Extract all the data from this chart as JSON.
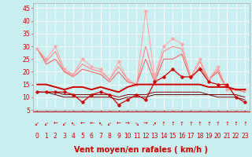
{
  "bg_color": "#c8eef0",
  "grid_color": "#ffffff",
  "xlabel": "Vent moyen/en rafales ( km/h )",
  "xlabel_color": "#cc0000",
  "xlim": [
    -0.5,
    23.5
  ],
  "ylim": [
    5,
    47
  ],
  "yticks": [
    5,
    10,
    15,
    20,
    25,
    30,
    35,
    40,
    45
  ],
  "xticks": [
    0,
    1,
    2,
    3,
    4,
    5,
    6,
    7,
    8,
    9,
    10,
    11,
    12,
    13,
    14,
    15,
    16,
    17,
    18,
    19,
    20,
    21,
    22,
    23
  ],
  "lines": [
    {
      "x": [
        0,
        1,
        2,
        3,
        4,
        5,
        6,
        7,
        8,
        9,
        10,
        11,
        12,
        13,
        14,
        15,
        16,
        17,
        18,
        19,
        20,
        21,
        22,
        23
      ],
      "y": [
        29,
        25,
        30,
        21,
        19,
        25,
        22,
        21,
        17,
        24,
        17,
        15,
        44,
        18,
        30,
        33,
        31,
        18,
        25,
        17,
        22,
        13,
        13,
        13
      ],
      "color": "#ffaaaa",
      "lw": 0.8,
      "marker": "D",
      "ms": 1.8,
      "zorder": 3
    },
    {
      "x": [
        0,
        1,
        2,
        3,
        4,
        5,
        6,
        7,
        8,
        9,
        10,
        11,
        12,
        13,
        14,
        15,
        16,
        17,
        18,
        19,
        20,
        21,
        22,
        23
      ],
      "y": [
        29,
        24,
        28,
        20,
        19,
        23,
        21,
        20,
        17,
        22,
        17,
        15,
        30,
        17,
        28,
        30,
        29,
        18,
        24,
        17,
        21,
        13,
        13,
        13
      ],
      "color": "#ff8888",
      "lw": 0.8,
      "marker": null,
      "ms": 0,
      "zorder": 2
    },
    {
      "x": [
        0,
        1,
        2,
        3,
        4,
        5,
        6,
        7,
        8,
        9,
        10,
        11,
        12,
        13,
        14,
        15,
        16,
        17,
        18,
        19,
        20,
        21,
        22,
        23
      ],
      "y": [
        29,
        23,
        25,
        20,
        18,
        21,
        20,
        19,
        16,
        20,
        16,
        15,
        25,
        16,
        25,
        25,
        27,
        17,
        22,
        17,
        20,
        13,
        13,
        12
      ],
      "color": "#ee6666",
      "lw": 0.8,
      "marker": null,
      "ms": 0,
      "zorder": 2
    },
    {
      "x": [
        0,
        1,
        2,
        3,
        4,
        5,
        6,
        7,
        8,
        9,
        10,
        11,
        12,
        13,
        14,
        15,
        16,
        17,
        18,
        19,
        20,
        21,
        22,
        23
      ],
      "y": [
        12,
        12,
        12,
        12,
        11,
        8,
        11,
        12,
        11,
        7,
        9,
        11,
        9,
        16,
        18,
        21,
        18,
        18,
        21,
        16,
        15,
        15,
        10,
        8
      ],
      "color": "#cc0000",
      "lw": 0.9,
      "marker": "D",
      "ms": 1.8,
      "zorder": 4
    },
    {
      "x": [
        0,
        1,
        2,
        3,
        4,
        5,
        6,
        7,
        8,
        9,
        10,
        11,
        12,
        13,
        14,
        15,
        16,
        17,
        18,
        19,
        20,
        21,
        22,
        23
      ],
      "y": [
        15,
        15,
        14,
        13,
        14,
        14,
        13,
        14,
        13,
        12,
        14,
        15,
        15,
        15,
        15,
        15,
        15,
        15,
        15,
        14,
        14,
        14,
        13,
        13
      ],
      "color": "#cc0000",
      "lw": 1.4,
      "marker": null,
      "ms": 0,
      "zorder": 3
    },
    {
      "x": [
        0,
        1,
        2,
        3,
        4,
        5,
        6,
        7,
        8,
        9,
        10,
        11,
        12,
        13,
        14,
        15,
        16,
        17,
        18,
        19,
        20,
        21,
        22,
        23
      ],
      "y": [
        12,
        12,
        12,
        11,
        11,
        11,
        11,
        11,
        11,
        10,
        11,
        11,
        11,
        12,
        12,
        12,
        12,
        12,
        12,
        11,
        11,
        11,
        11,
        10
      ],
      "color": "#880000",
      "lw": 0.7,
      "marker": null,
      "ms": 0,
      "zorder": 2
    },
    {
      "x": [
        0,
        1,
        2,
        3,
        4,
        5,
        6,
        7,
        8,
        9,
        10,
        11,
        12,
        13,
        14,
        15,
        16,
        17,
        18,
        19,
        20,
        21,
        22,
        23
      ],
      "y": [
        12,
        12,
        11,
        10,
        10,
        10,
        10,
        10,
        10,
        9,
        10,
        10,
        10,
        11,
        11,
        11,
        11,
        11,
        11,
        11,
        10,
        10,
        10,
        9
      ],
      "color": "#660000",
      "lw": 0.7,
      "marker": null,
      "ms": 0,
      "zorder": 2
    }
  ],
  "arrow_symbols": [
    "↙",
    "↙",
    "←",
    "↙",
    "↖",
    "←",
    "←",
    "↖",
    "↙",
    "←",
    "→",
    "↘",
    "→",
    "↗",
    "↑",
    "↑",
    "↑",
    "↑",
    "↑",
    "↑",
    "↑",
    "↑",
    "↑",
    "↑"
  ],
  "arrow_color": "#cc0000",
  "tick_color": "#cc0000",
  "tick_fontsize": 5.5,
  "xlabel_fontsize": 7.0,
  "spine_color": "#aaaaaa"
}
